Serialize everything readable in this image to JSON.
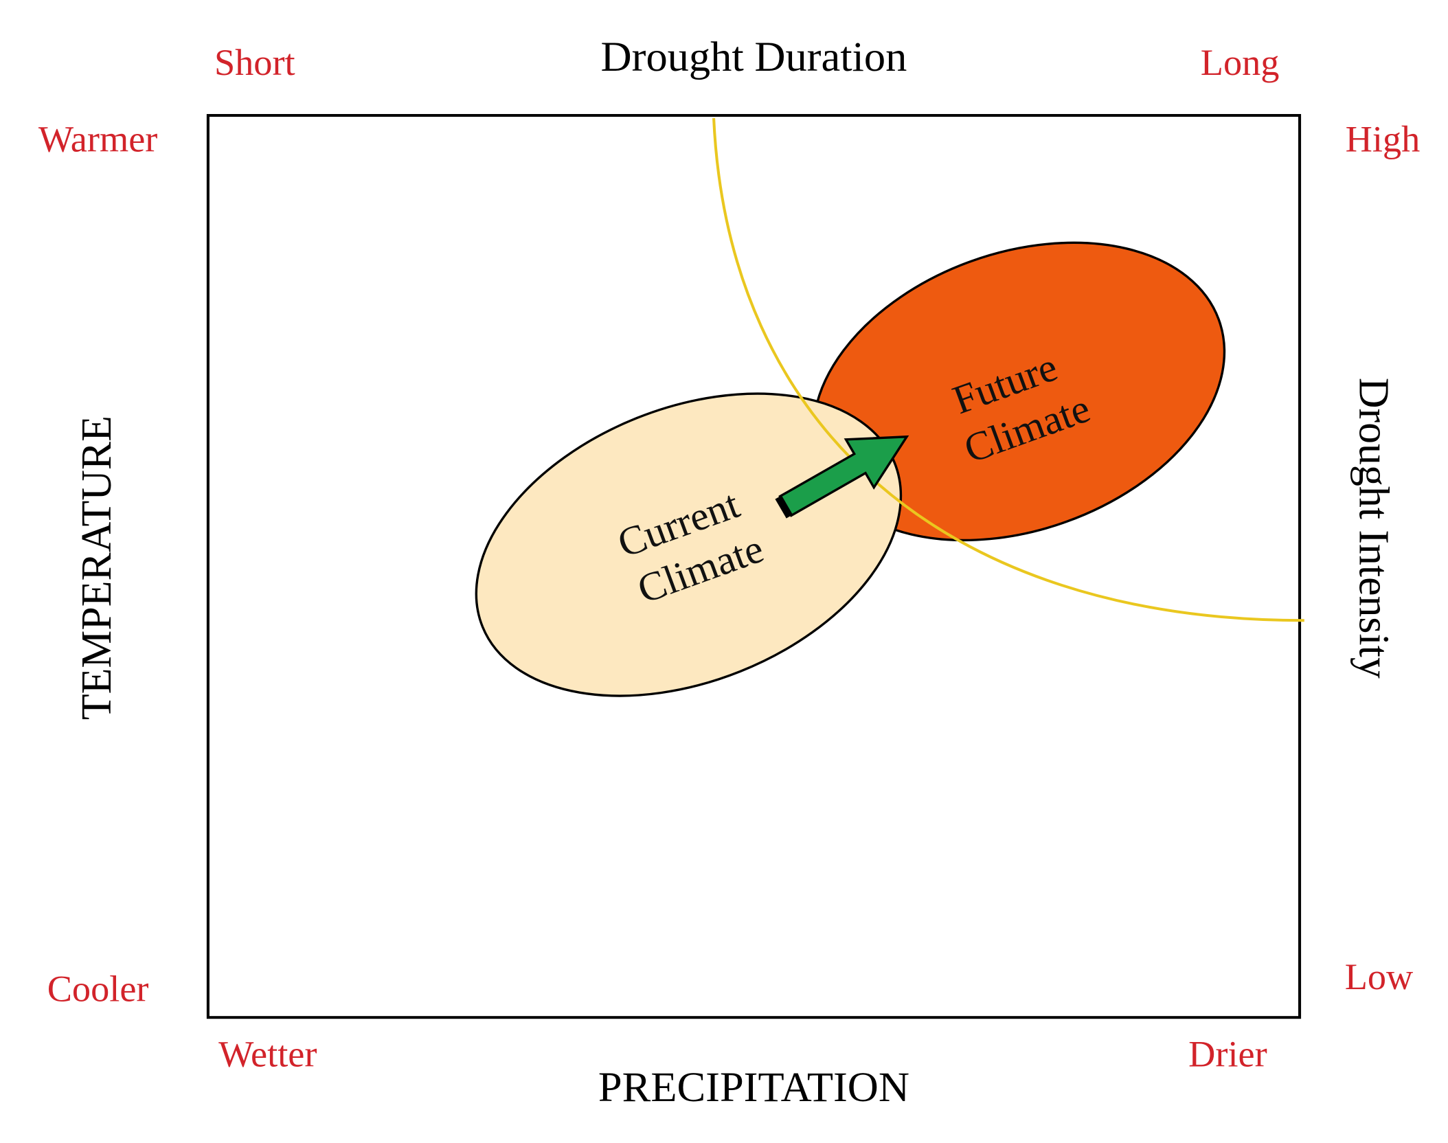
{
  "top_axis": {
    "title": "Drought Duration",
    "start": "Short",
    "end": "Long"
  },
  "left_axis": {
    "title": "TEMPERATURE",
    "top": "Warmer",
    "bottom": "Cooler"
  },
  "bottom_axis": {
    "title": "PRECIPITATION",
    "start": "Wetter",
    "end": "Drier"
  },
  "right_axis": {
    "title": "Drought Intensity",
    "top": "High",
    "bottom": "Low"
  },
  "regions": [
    {
      "lines": [
        "Current",
        "Climate"
      ]
    },
    {
      "lines": [
        "Future",
        "Climate"
      ]
    }
  ]
}
